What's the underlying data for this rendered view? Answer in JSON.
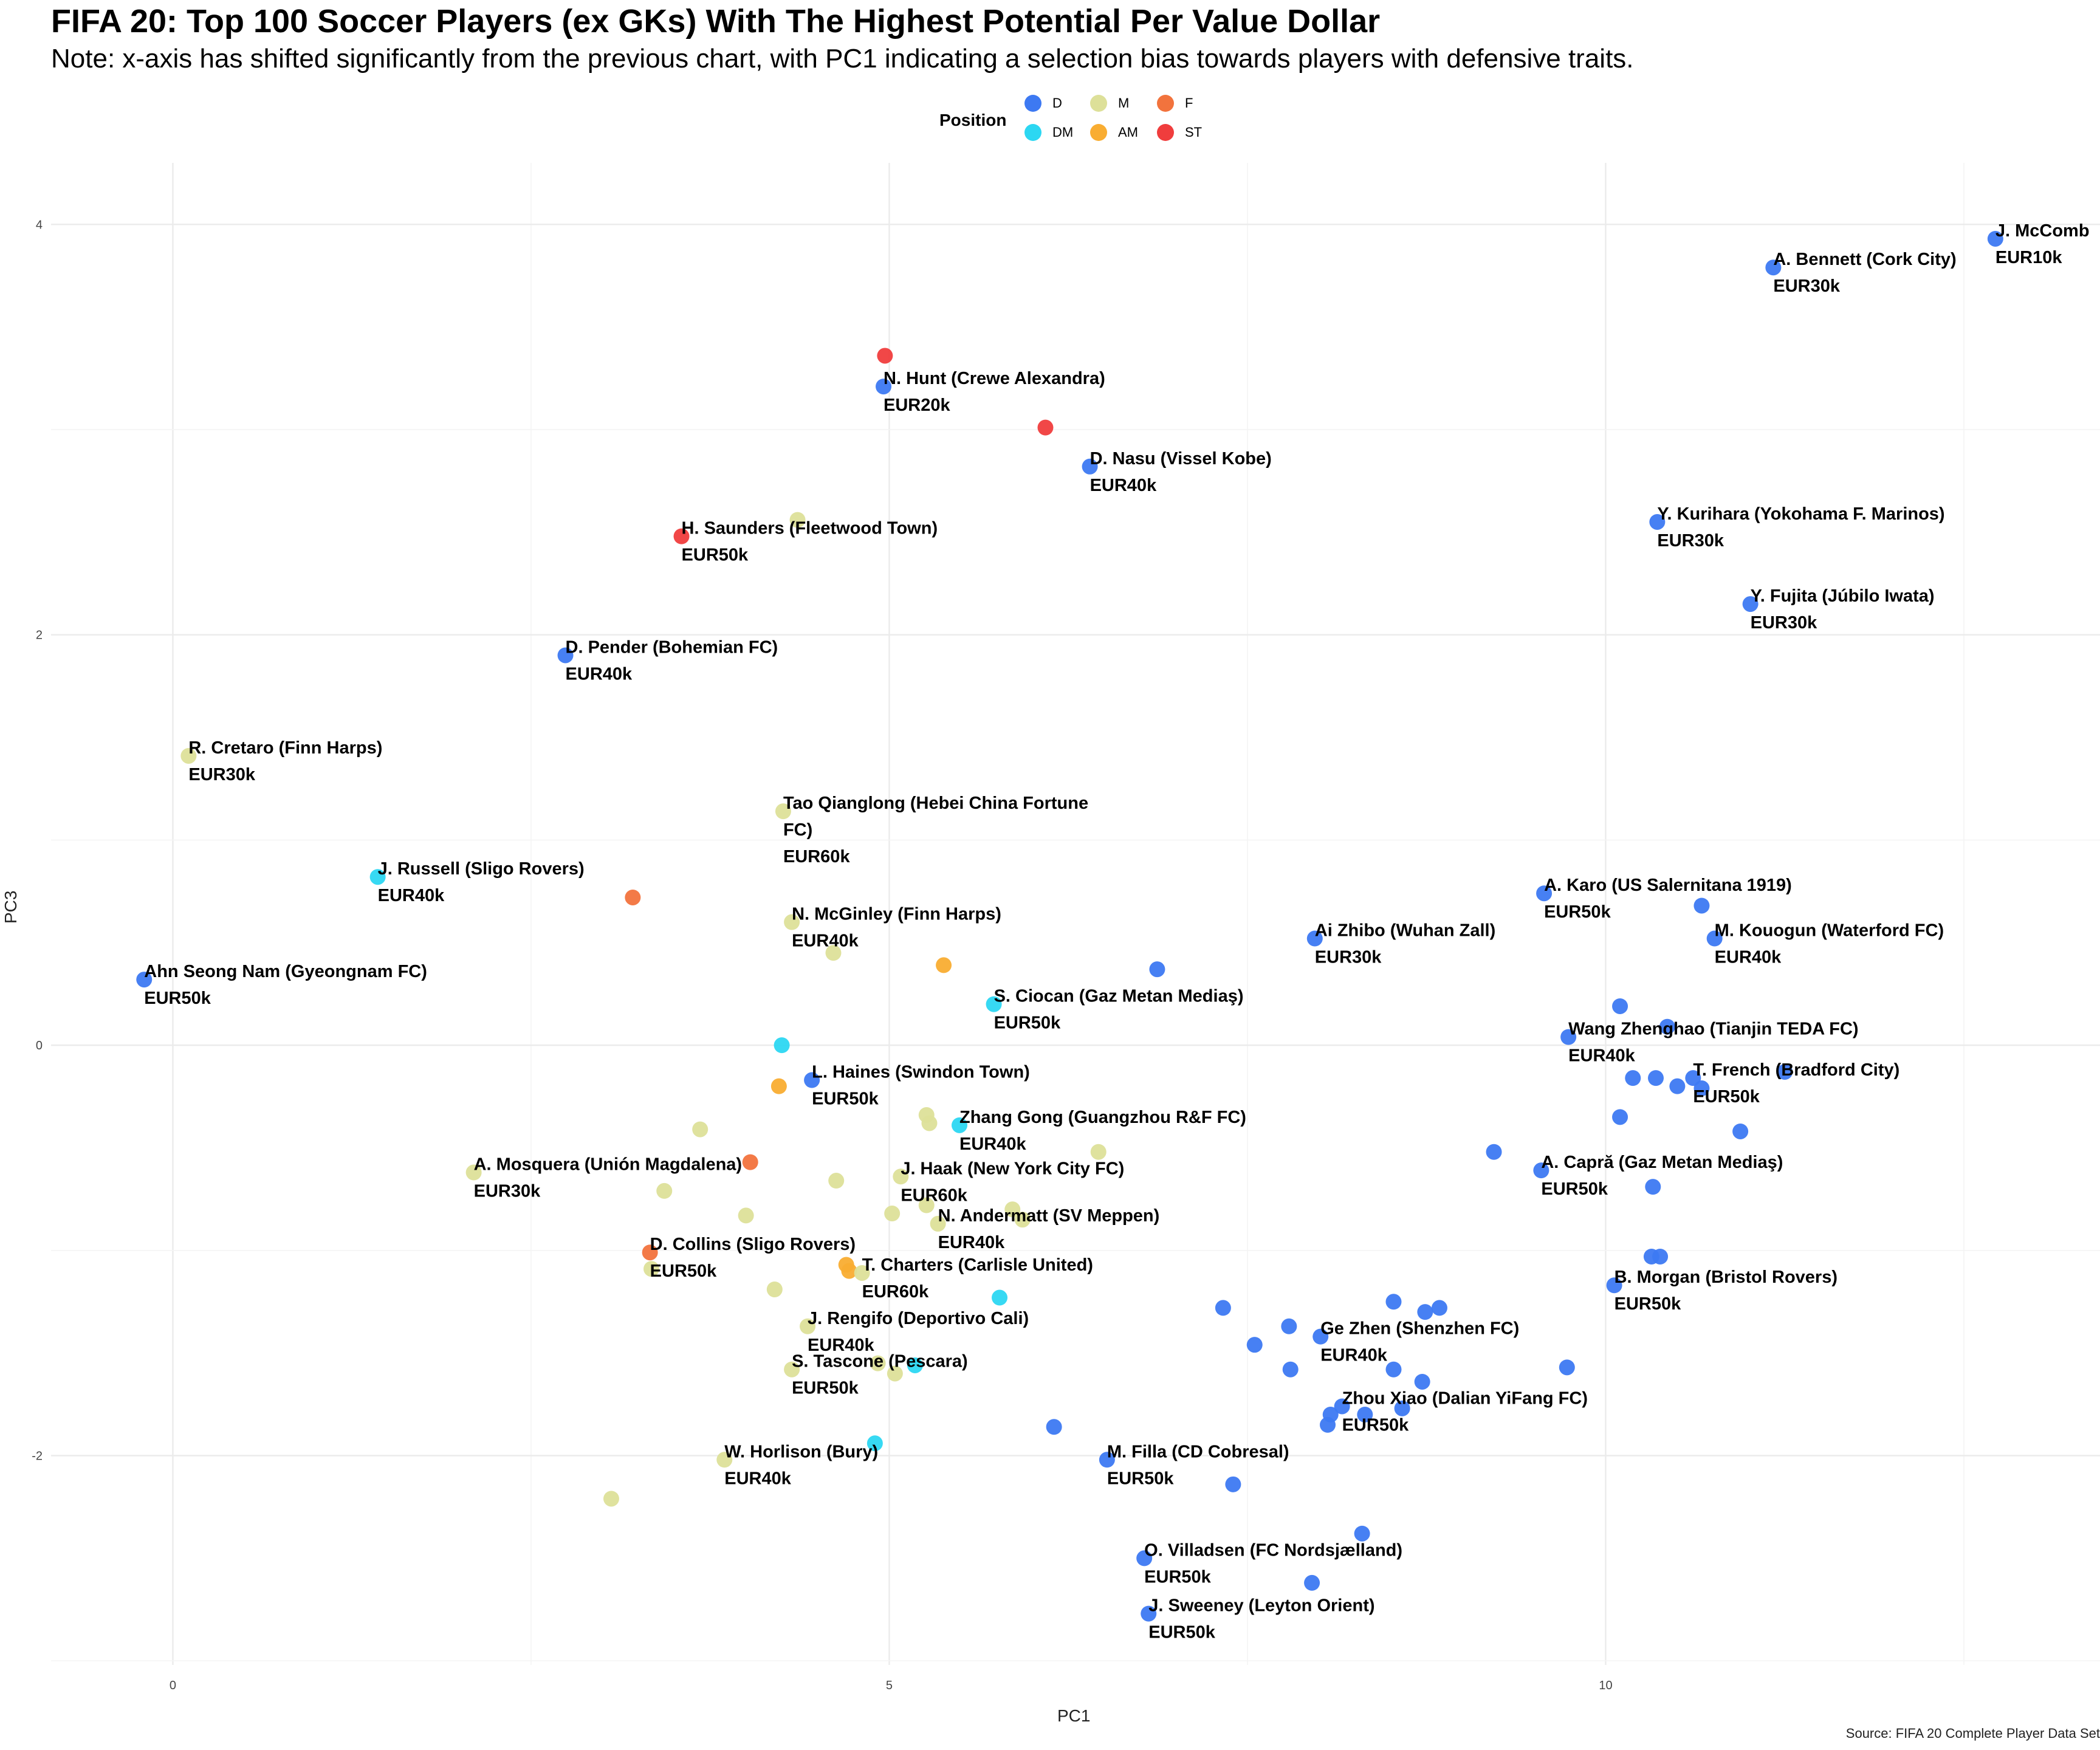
{
  "chart_data": {
    "type": "scatter",
    "title": "FIFA 20: Top 100 Soccer Players (ex GKs) With The Highest Potential Per Value Dollar",
    "subtitle": "Note: x-axis has shifted significantly from the previous chart, with PC1 indicating a selection bias towards players with defensive traits.",
    "caption": "Source: FIFA 20 Complete Player Data Set",
    "xlabel": "PC1",
    "ylabel": "PC3",
    "xlim": [
      -0.85,
      13.45
    ],
    "ylim": [
      -3.02,
      4.3
    ],
    "xticks": [
      0,
      5,
      10
    ],
    "yticks": [
      -2,
      0,
      2,
      4
    ],
    "grid": true,
    "legend": {
      "title": "Position",
      "placement": "top",
      "entries": [
        {
          "label": "D",
          "color": "#3d79f2"
        },
        {
          "label": "DM",
          "color": "#2cd7f2"
        },
        {
          "label": "M",
          "color": "#dde099"
        },
        {
          "label": "AM",
          "color": "#f9ad32"
        },
        {
          "label": "F",
          "color": "#f2733d"
        },
        {
          "label": "ST",
          "color": "#f03d3d"
        }
      ]
    },
    "colors": {
      "D": "#3d79f2",
      "DM": "#2cd7f2",
      "M": "#dde099",
      "AM": "#f9ad32",
      "F": "#f2733d",
      "ST": "#f03d3d"
    },
    "points": [
      {
        "x": 12.72,
        "y": 3.93,
        "pos": "D",
        "label": [
          "J. McComb",
          "EUR10k"
        ]
      },
      {
        "x": 11.17,
        "y": 3.79,
        "pos": "D",
        "label": [
          "A. Bennett (Cork City)",
          "EUR30k"
        ]
      },
      {
        "x": 10.36,
        "y": 2.55,
        "pos": "D",
        "label": [
          "Y. Kurihara (Yokohama F. Marinos)",
          "EUR30k"
        ]
      },
      {
        "x": 11.01,
        "y": 2.15,
        "pos": "D",
        "label": [
          "Y. Fujita (Júbilo Iwata)",
          "EUR30k"
        ]
      },
      {
        "x": 4.97,
        "y": 3.36,
        "pos": "ST"
      },
      {
        "x": 4.96,
        "y": 3.21,
        "pos": "D",
        "label": [
          "N. Hunt (Crewe Alexandra)",
          "EUR20k"
        ]
      },
      {
        "x": 6.09,
        "y": 3.01,
        "pos": "ST"
      },
      {
        "x": 6.4,
        "y": 2.82,
        "pos": "D",
        "label": [
          "D. Nasu (Vissel Kobe)",
          "EUR40k"
        ]
      },
      {
        "x": 4.36,
        "y": 2.56,
        "pos": "M"
      },
      {
        "x": 3.55,
        "y": 2.48,
        "pos": "ST",
        "label": [
          "H. Saunders (Fleetwood Town)",
          "EUR50k"
        ]
      },
      {
        "x": 2.74,
        "y": 1.9,
        "pos": "D",
        "label": [
          "D. Pender (Bohemian FC)",
          "EUR40k"
        ]
      },
      {
        "x": 0.11,
        "y": 1.41,
        "pos": "M",
        "label": [
          "R. Cretaro (Finn Harps)",
          "EUR30k"
        ]
      },
      {
        "x": 4.26,
        "y": 1.14,
        "pos": "M",
        "label": [
          "Tao Qianglong (Hebei China Fortune",
          "FC)",
          "EUR60k"
        ]
      },
      {
        "x": 1.43,
        "y": 0.82,
        "pos": "DM",
        "label": [
          "J. Russell (Sligo Rovers)",
          "EUR40k"
        ]
      },
      {
        "x": 3.21,
        "y": 0.72,
        "pos": "F"
      },
      {
        "x": 4.32,
        "y": 0.6,
        "pos": "M",
        "label": [
          "N. McGinley (Finn Harps)",
          "EUR40k"
        ]
      },
      {
        "x": 4.61,
        "y": 0.45,
        "pos": "M"
      },
      {
        "x": 5.38,
        "y": 0.39,
        "pos": "AM"
      },
      {
        "x": 6.87,
        "y": 0.37,
        "pos": "D"
      },
      {
        "x": 7.97,
        "y": 0.52,
        "pos": "D",
        "label": [
          "Ai Zhibo (Wuhan Zall)",
          "EUR30k"
        ]
      },
      {
        "x": 9.57,
        "y": 0.74,
        "pos": "D",
        "label": [
          "A. Karo (US Salernitana 1919)",
          "EUR50k"
        ]
      },
      {
        "x": 10.67,
        "y": 0.68,
        "pos": "D"
      },
      {
        "x": 10.76,
        "y": 0.52,
        "pos": "D",
        "label": [
          "M. Kouogun (Waterford FC)",
          "EUR40k"
        ]
      },
      {
        "x": -0.2,
        "y": 0.32,
        "pos": "D",
        "label": [
          "Ahn Seong Nam (Gyeongnam FC)",
          "EUR50k"
        ]
      },
      {
        "x": 5.73,
        "y": 0.2,
        "pos": "DM",
        "label": [
          "S. Ciocan (Gaz Metan Mediaş)",
          "EUR50k"
        ]
      },
      {
        "x": 4.25,
        "y": 0.0,
        "pos": "DM"
      },
      {
        "x": 10.1,
        "y": 0.19,
        "pos": "D"
      },
      {
        "x": 10.43,
        "y": 0.09,
        "pos": "D"
      },
      {
        "x": 9.74,
        "y": 0.04,
        "pos": "D",
        "label": [
          "Wang Zhenghao (Tianjin TEDA FC)",
          "EUR40k"
        ]
      },
      {
        "x": 4.46,
        "y": -0.17,
        "pos": "D",
        "label": [
          "L. Haines (Swindon Town)",
          "EUR50k"
        ]
      },
      {
        "x": 4.23,
        "y": -0.2,
        "pos": "AM"
      },
      {
        "x": 10.19,
        "y": -0.16,
        "pos": "D"
      },
      {
        "x": 10.35,
        "y": -0.16,
        "pos": "D"
      },
      {
        "x": 10.5,
        "y": -0.2,
        "pos": "D"
      },
      {
        "x": 10.61,
        "y": -0.16,
        "pos": "D",
        "label": [
          "T. French (Bradford City)",
          "EUR50k"
        ]
      },
      {
        "x": 10.67,
        "y": -0.21,
        "pos": "D"
      },
      {
        "x": 11.25,
        "y": -0.13,
        "pos": "D"
      },
      {
        "x": 3.68,
        "y": -0.41,
        "pos": "M"
      },
      {
        "x": 5.26,
        "y": -0.34,
        "pos": "M"
      },
      {
        "x": 5.28,
        "y": -0.38,
        "pos": "M"
      },
      {
        "x": 5.49,
        "y": -0.39,
        "pos": "DM",
        "label": [
          "Zhang Gong (Guangzhou R&F FC)",
          "EUR40k"
        ]
      },
      {
        "x": 10.1,
        "y": -0.35,
        "pos": "D"
      },
      {
        "x": 10.94,
        "y": -0.42,
        "pos": "D"
      },
      {
        "x": 2.1,
        "y": -0.62,
        "pos": "M",
        "label": [
          "A. Mosquera (Unión Magdalena)",
          "EUR30k"
        ]
      },
      {
        "x": 4.03,
        "y": -0.57,
        "pos": "F"
      },
      {
        "x": 6.46,
        "y": -0.52,
        "pos": "M"
      },
      {
        "x": 9.22,
        "y": -0.52,
        "pos": "D"
      },
      {
        "x": 9.55,
        "y": -0.61,
        "pos": "D",
        "label": [
          "A. Capră (Gaz Metan Mediaş)",
          "EUR50k"
        ]
      },
      {
        "x": 5.08,
        "y": -0.64,
        "pos": "M",
        "label": [
          "J. Haak (New York City FC)",
          "EUR60k"
        ]
      },
      {
        "x": 4.63,
        "y": -0.66,
        "pos": "M"
      },
      {
        "x": 3.43,
        "y": -0.71,
        "pos": "M"
      },
      {
        "x": 10.33,
        "y": -0.69,
        "pos": "D"
      },
      {
        "x": 5.26,
        "y": -0.78,
        "pos": "M"
      },
      {
        "x": 5.02,
        "y": -0.82,
        "pos": "M"
      },
      {
        "x": 4.0,
        "y": -0.83,
        "pos": "M"
      },
      {
        "x": 5.34,
        "y": -0.87,
        "pos": "M",
        "label": [
          "N. Andermatt (SV Meppen)",
          "EUR40k"
        ]
      },
      {
        "x": 5.93,
        "y": -0.85,
        "pos": "M"
      },
      {
        "x": 5.86,
        "y": -0.8,
        "pos": "M"
      },
      {
        "x": 3.33,
        "y": -1.01,
        "pos": "F",
        "label": [
          "D. Collins (Sligo Rovers)",
          "EUR50k"
        ]
      },
      {
        "x": 3.34,
        "y": -1.09,
        "pos": "M"
      },
      {
        "x": 4.7,
        "y": -1.07,
        "pos": "AM"
      },
      {
        "x": 4.72,
        "y": -1.1,
        "pos": "AM"
      },
      {
        "x": 4.81,
        "y": -1.11,
        "pos": "M",
        "label": [
          "T. Charters (Carlisle United)",
          "EUR60k"
        ]
      },
      {
        "x": 10.32,
        "y": -1.03,
        "pos": "D"
      },
      {
        "x": 10.38,
        "y": -1.03,
        "pos": "D"
      },
      {
        "x": 10.06,
        "y": -1.17,
        "pos": "D",
        "label": [
          "B. Morgan (Bristol Rovers)",
          "EUR50k"
        ]
      },
      {
        "x": 4.2,
        "y": -1.19,
        "pos": "M"
      },
      {
        "x": 5.77,
        "y": -1.23,
        "pos": "DM"
      },
      {
        "x": 7.33,
        "y": -1.28,
        "pos": "D"
      },
      {
        "x": 7.55,
        "y": -1.46,
        "pos": "D"
      },
      {
        "x": 7.79,
        "y": -1.37,
        "pos": "D"
      },
      {
        "x": 8.01,
        "y": -1.42,
        "pos": "D",
        "label": [
          "Ge Zhen (Shenzhen FC)",
          "EUR40k"
        ]
      },
      {
        "x": 8.52,
        "y": -1.25,
        "pos": "D"
      },
      {
        "x": 8.74,
        "y": -1.3,
        "pos": "D"
      },
      {
        "x": 8.84,
        "y": -1.28,
        "pos": "D"
      },
      {
        "x": 4.43,
        "y": -1.37,
        "pos": "M",
        "label": [
          "J. Rengifo (Deportivo Cali)",
          "EUR40k"
        ]
      },
      {
        "x": 4.92,
        "y": -1.55,
        "pos": "M"
      },
      {
        "x": 5.18,
        "y": -1.56,
        "pos": "DM"
      },
      {
        "x": 4.32,
        "y": -1.58,
        "pos": "M",
        "label": [
          "S. Tascone (Pescara)",
          "EUR50k"
        ]
      },
      {
        "x": 5.04,
        "y": -1.6,
        "pos": "M"
      },
      {
        "x": 7.8,
        "y": -1.58,
        "pos": "D"
      },
      {
        "x": 8.52,
        "y": -1.58,
        "pos": "D"
      },
      {
        "x": 8.72,
        "y": -1.64,
        "pos": "D"
      },
      {
        "x": 9.73,
        "y": -1.57,
        "pos": "D"
      },
      {
        "x": 8.16,
        "y": -1.76,
        "pos": "D",
        "label": [
          "Zhou Xiao (Dalian YiFang FC)",
          "EUR50k"
        ]
      },
      {
        "x": 8.08,
        "y": -1.8,
        "pos": "D"
      },
      {
        "x": 8.32,
        "y": -1.8,
        "pos": "D"
      },
      {
        "x": 8.58,
        "y": -1.77,
        "pos": "D"
      },
      {
        "x": 8.06,
        "y": -1.85,
        "pos": "D"
      },
      {
        "x": 6.15,
        "y": -1.86,
        "pos": "D"
      },
      {
        "x": 4.9,
        "y": -1.94,
        "pos": "DM"
      },
      {
        "x": 3.85,
        "y": -2.02,
        "pos": "M",
        "label": [
          "W. Horlison (Bury)",
          "EUR40k"
        ]
      },
      {
        "x": 3.06,
        "y": -2.21,
        "pos": "M"
      },
      {
        "x": 6.52,
        "y": -2.02,
        "pos": "D",
        "label": [
          "M. Filla (CD Cobresal)",
          "EUR50k"
        ]
      },
      {
        "x": 7.4,
        "y": -2.14,
        "pos": "D"
      },
      {
        "x": 8.3,
        "y": -2.38,
        "pos": "D"
      },
      {
        "x": 6.78,
        "y": -2.5,
        "pos": "D",
        "label": [
          "O. Villadsen (FC Nordsjælland)",
          "EUR50k"
        ]
      },
      {
        "x": 7.95,
        "y": -2.62,
        "pos": "D"
      },
      {
        "x": 6.81,
        "y": -2.77,
        "pos": "D",
        "label": [
          "J. Sweeney (Leyton Orient)",
          "EUR50k"
        ]
      }
    ]
  }
}
